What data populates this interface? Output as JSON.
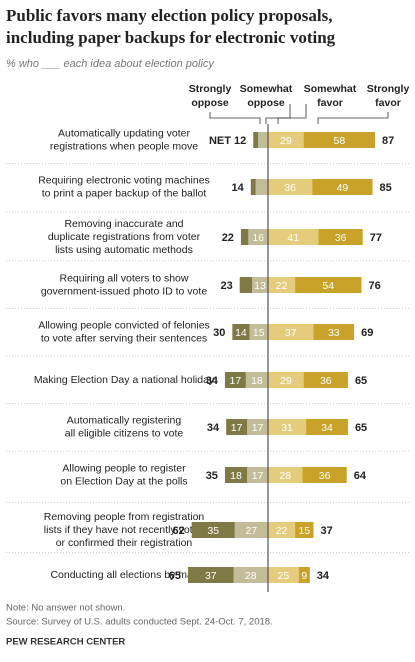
{
  "chart_data": {
    "type": "diverging_bar",
    "title": [
      "Public favors many election policy proposals,",
      "including paper backups for electronic voting"
    ],
    "subtitle": "% who ___ each idea about election policy",
    "categories": [
      [
        "Automatically updating voter",
        "registrations when people move"
      ],
      [
        "Requiring electronic voting machines",
        "to print a paper backup of the ballot"
      ],
      [
        "Removing inaccurate and",
        "duplicate registrations from voter",
        "lists using automatic methods"
      ],
      [
        "Requiring all voters to show",
        "government-issued photo ID to vote"
      ],
      [
        "Allowing people convicted of felonies",
        "to vote after serving their sentences"
      ],
      [
        "Making Election Day a national holiday"
      ],
      [
        "Automatically registering",
        "all eligible citizens to vote"
      ],
      [
        "Allowing people to register",
        "on Election Day at the polls"
      ],
      [
        "Removing people from registration",
        "lists if they have not recently voted",
        "or confirmed their registration"
      ],
      [
        "Conducting all elections by mail"
      ]
    ],
    "series": [
      {
        "name": "Strongly oppose",
        "side": "oppose",
        "color": "#7f7a45",
        "values": [
          4,
          4,
          6,
          10,
          14,
          17,
          17,
          18,
          35,
          37
        ],
        "value_labels": [
          null,
          null,
          null,
          null,
          "14",
          "17",
          "17",
          "18",
          "35",
          "37"
        ]
      },
      {
        "name": "Somewhat oppose",
        "side": "oppose",
        "color": "#c2bd98",
        "values": [
          8,
          10,
          16,
          13,
          15,
          18,
          17,
          17,
          27,
          28
        ],
        "value_labels": [
          null,
          null,
          "16",
          "13",
          "15",
          "18",
          "17",
          "17",
          "27",
          "28"
        ]
      },
      {
        "name": "Somewhat favor",
        "side": "favor",
        "color": "#e5cc7c",
        "values": [
          29,
          36,
          41,
          22,
          37,
          29,
          31,
          28,
          22,
          25
        ],
        "value_labels": [
          "29",
          "36",
          "41",
          "22",
          "37",
          "29",
          "31",
          "28",
          "22",
          "25"
        ]
      },
      {
        "name": "Strongly favor",
        "side": "favor",
        "color": "#c9a22a",
        "values": [
          58,
          49,
          36,
          54,
          33,
          36,
          34,
          36,
          15,
          9
        ],
        "value_labels": [
          "58",
          "49",
          "36",
          "54",
          "33",
          "36",
          "34",
          "36",
          "15",
          "9"
        ]
      }
    ],
    "net_oppose": {
      "values": [
        12,
        14,
        22,
        23,
        30,
        34,
        34,
        35,
        62,
        65
      ],
      "value_labels": [
        "NET 12",
        "14",
        "22",
        "23",
        "30",
        "34",
        "34",
        "35",
        "62",
        "65"
      ]
    },
    "net_favor": {
      "values": [
        87,
        85,
        77,
        76,
        69,
        65,
        65,
        64,
        37,
        34
      ],
      "value_labels": [
        "87",
        "85",
        "77",
        "76",
        "69",
        "65",
        "65",
        "64",
        "37",
        "34"
      ]
    },
    "xlim": [
      -100,
      100
    ],
    "notes": [
      "Note: No answer not shown.",
      "Source: Survey of U.S. adults conducted Sept. 24-Oct. 7, 2018."
    ],
    "source": "PEW RESEARCH CENTER"
  }
}
